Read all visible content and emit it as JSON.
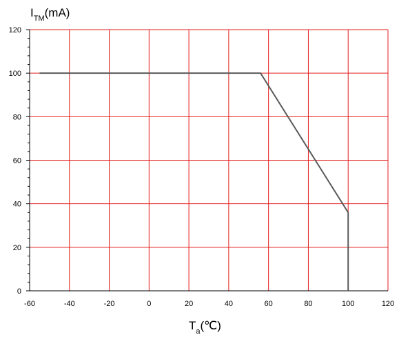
{
  "chart_data": {
    "type": "line",
    "ylabel": {
      "main": "I",
      "sub": "TM",
      "unit": "(mA)"
    },
    "xlabel": {
      "main": "T",
      "sub": "a",
      "unit": "(℃)"
    },
    "xlim": [
      -60,
      120
    ],
    "ylim": [
      0,
      120
    ],
    "x_ticks": [
      "-60",
      "-40",
      "-20",
      "0",
      "20",
      "40",
      "60",
      "80",
      "100",
      "120"
    ],
    "y_ticks": [
      "0",
      "20",
      "40",
      "60",
      "80",
      "100",
      "120"
    ],
    "grid": true,
    "series": [
      {
        "x": [
          -55,
          56,
          100,
          100
        ],
        "y": [
          100,
          100,
          36,
          0
        ]
      }
    ],
    "colors": {
      "grid": "#e31b1b",
      "line": "#5a5a5a",
      "axis": "#000000"
    }
  }
}
